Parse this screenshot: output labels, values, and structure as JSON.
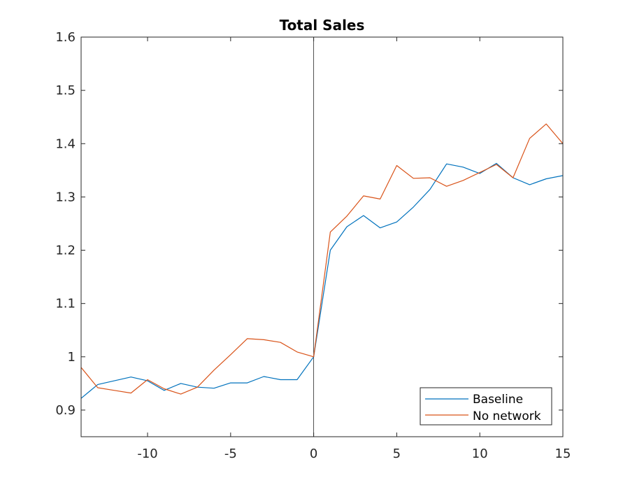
{
  "chart_data": {
    "type": "line",
    "title": "Total Sales",
    "xlabel": "",
    "ylabel": "",
    "xlim": [
      -14,
      15
    ],
    "ylim": [
      0.85,
      1.6
    ],
    "xticks": [
      -10,
      -5,
      0,
      5,
      10,
      15
    ],
    "yticks": [
      0.9,
      1,
      1.1,
      1.2,
      1.3,
      1.4,
      1.5,
      1.6
    ],
    "xtick_labels": [
      "-10",
      "-5",
      "0",
      "5",
      "10",
      "15"
    ],
    "ytick_labels": [
      "0.9",
      "1",
      "1.1",
      "1.2",
      "1.3",
      "1.4",
      "1.5",
      "1.6"
    ],
    "grid": false,
    "legend_position": "bottom-right",
    "reference_line_x": 0,
    "x": [
      -14,
      -13,
      -12,
      -11,
      -10,
      -9,
      -8,
      -7,
      -6,
      -5,
      -4,
      -3,
      -2,
      -1,
      0,
      1,
      2,
      3,
      4,
      5,
      6,
      7,
      8,
      9,
      10,
      11,
      12,
      13,
      14,
      15
    ],
    "series": [
      {
        "name": "Baseline",
        "color": "#0072BD",
        "values": [
          0.922,
          0.948,
          0.955,
          0.962,
          0.955,
          0.937,
          0.95,
          0.943,
          0.941,
          0.951,
          0.951,
          0.963,
          0.957,
          0.957,
          1.0,
          1.2,
          1.244,
          1.265,
          1.242,
          1.253,
          1.281,
          1.314,
          1.362,
          1.356,
          1.344,
          1.363,
          1.336,
          1.323,
          1.334,
          1.34
        ]
      },
      {
        "name": "No network",
        "color": "#D95319",
        "values": [
          0.98,
          0.942,
          0.937,
          0.932,
          0.957,
          0.94,
          0.93,
          0.943,
          0.975,
          1.004,
          1.034,
          1.032,
          1.027,
          1.009,
          1.0,
          1.234,
          1.264,
          1.302,
          1.296,
          1.359,
          1.335,
          1.336,
          1.32,
          1.331,
          1.346,
          1.361,
          1.336,
          1.41,
          1.437,
          1.4
        ]
      }
    ]
  }
}
